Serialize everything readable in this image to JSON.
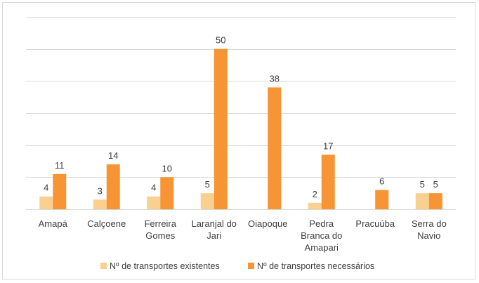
{
  "chart_data": {
    "type": "bar",
    "title": "",
    "xlabel": "",
    "ylabel": "",
    "ylim": [
      0,
      60
    ],
    "grid": true,
    "legend_position": "bottom",
    "categories": [
      [
        "Amapá"
      ],
      [
        "Calçoene"
      ],
      [
        "Ferreira",
        "Gomes"
      ],
      [
        "Laranjal do",
        "Jari"
      ],
      [
        "Oiapoque"
      ],
      [
        "Pedra",
        "Branca do",
        "Amapari"
      ],
      [
        "Pracuúba"
      ],
      [
        "Serra do",
        "Navio"
      ]
    ],
    "series": [
      {
        "name": "Nº de transportes existentes",
        "color": "#FAD090",
        "values": [
          4,
          3,
          4,
          5,
          null,
          2,
          null,
          5
        ]
      },
      {
        "name": "Nº de transportes necessários",
        "color": "#F79433",
        "values": [
          11,
          14,
          10,
          50,
          38,
          17,
          6,
          5
        ]
      }
    ]
  }
}
